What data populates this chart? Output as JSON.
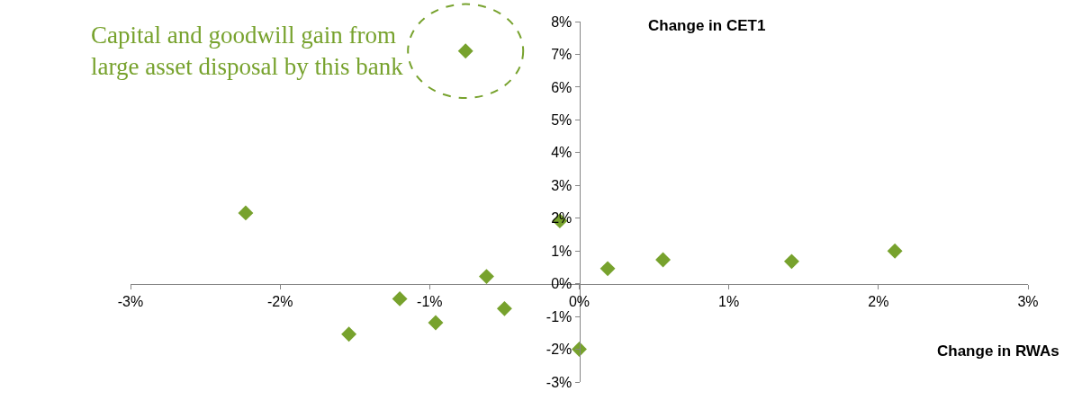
{
  "chart_data": {
    "type": "scatter",
    "xlabel": "Change in RWAs",
    "ylabel": "Change in CET1",
    "x": [
      -0.76,
      -2.23,
      -0.13,
      -0.62,
      -1.2,
      -1.54,
      -0.96,
      -0.5,
      0.0,
      0.19,
      0.56,
      1.42,
      2.11
    ],
    "values": [
      7.1,
      2.16,
      1.92,
      0.22,
      -0.46,
      -1.54,
      -1.19,
      -0.76,
      -2.0,
      0.46,
      0.73,
      0.68,
      1.0
    ],
    "color": "#77a22d",
    "marker": "diamond",
    "xlim": [
      -3,
      3
    ],
    "ylim": [
      -3,
      8
    ],
    "xticks": [
      {
        "value": -3,
        "label": "-3%"
      },
      {
        "value": -2,
        "label": "-2%"
      },
      {
        "value": -1,
        "label": "-1%"
      },
      {
        "value": 0,
        "label": "0%"
      },
      {
        "value": 1,
        "label": "1%"
      },
      {
        "value": 2,
        "label": "2%"
      },
      {
        "value": 3,
        "label": "3%"
      }
    ],
    "yticks": [
      {
        "value": -3,
        "label": "-3%"
      },
      {
        "value": -2,
        "label": "-2%"
      },
      {
        "value": -1,
        "label": "-1%"
      },
      {
        "value": 0,
        "label": "0%"
      },
      {
        "value": 1,
        "label": "1%"
      },
      {
        "value": 2,
        "label": "2%"
      },
      {
        "value": 3,
        "label": "3%"
      },
      {
        "value": 4,
        "label": "4%"
      },
      {
        "value": 5,
        "label": "5%"
      },
      {
        "value": 6,
        "label": "6%"
      },
      {
        "value": 7,
        "label": "7%"
      },
      {
        "value": 8,
        "label": "8%"
      }
    ],
    "annotations": [
      {
        "text": "Capital and goodwill gain from\nlarge asset disposal by this bank",
        "x": -0.76,
        "y": 7.1
      }
    ]
  }
}
